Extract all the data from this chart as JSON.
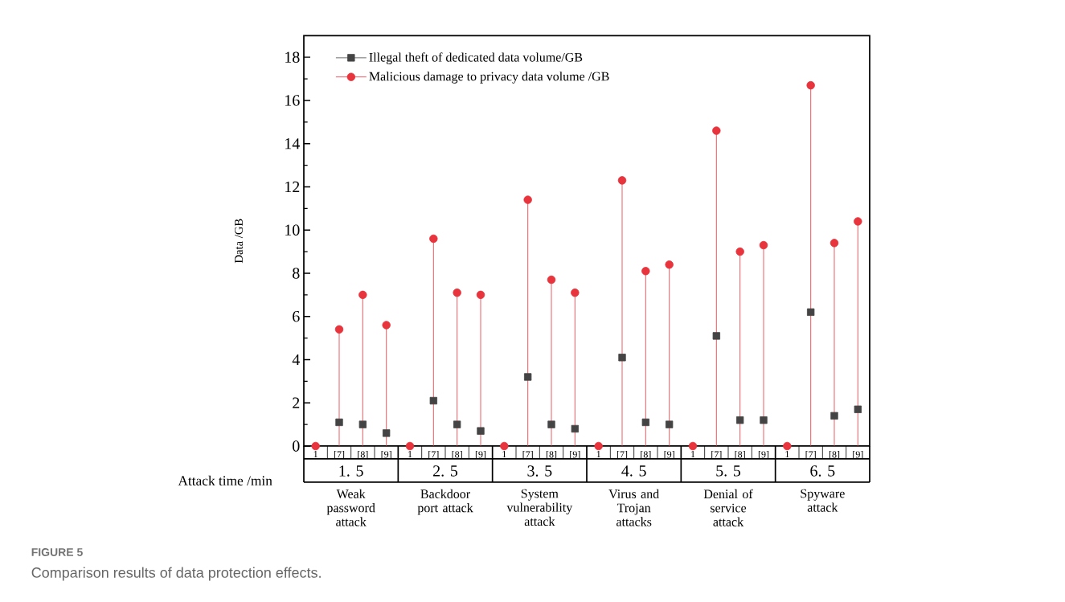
{
  "chart_data": {
    "type": "lollipop",
    "xlabel": "Attack time /min",
    "ylabel": "Data /GB",
    "categories": [
      "1",
      "[7]",
      "[8]",
      "[9]",
      "1",
      "[7]",
      "[8]",
      "[9]",
      "1",
      "[7]",
      "[8]",
      "[9]",
      "1",
      "[7]",
      "[8]",
      "[9]",
      "1",
      "[7]",
      "[8]",
      "[9]",
      "1",
      "[7]",
      "[8]",
      "[9]"
    ],
    "series": [
      {
        "name": "Illegal theft of dedicated data volume/GB",
        "type": "scatter",
        "marker": "square",
        "color": "#444444",
        "values": [
          null,
          1.1,
          1.0,
          0.6,
          null,
          2.1,
          1.0,
          0.7,
          null,
          3.2,
          1.0,
          0.8,
          null,
          4.1,
          1.1,
          1.0,
          null,
          5.1,
          1.2,
          1.2,
          null,
          6.2,
          1.4,
          1.7
        ]
      },
      {
        "name": "Malicious damage to privacy data volume /GB",
        "marker": "circle",
        "color": "#e8343c",
        "values": [
          0,
          5.4,
          7.0,
          5.6,
          0,
          9.6,
          7.1,
          7.0,
          0,
          11.4,
          7.7,
          7.1,
          0,
          12.3,
          8.1,
          8.4,
          0,
          14.6,
          9.0,
          9.3,
          0,
          16.7,
          9.4,
          10.4
        ]
      }
    ],
    "ylim": [
      0,
      19
    ],
    "yticks": [
      0,
      2,
      4,
      6,
      8,
      10,
      12,
      14,
      16,
      18
    ],
    "legend": "top left",
    "annotations": [
      "1. 5",
      "2. 5",
      "3. 5",
      "4. 5",
      "5. 5",
      "6. 5",
      "Weak password attack",
      "Backdoor port attack",
      "System vulnerability attack",
      "Virus and Trojan attacks",
      "Denial of service attack",
      "Spyware attack",
      "FIGURE 5",
      "Comparison results of data protection effects."
    ]
  }
}
